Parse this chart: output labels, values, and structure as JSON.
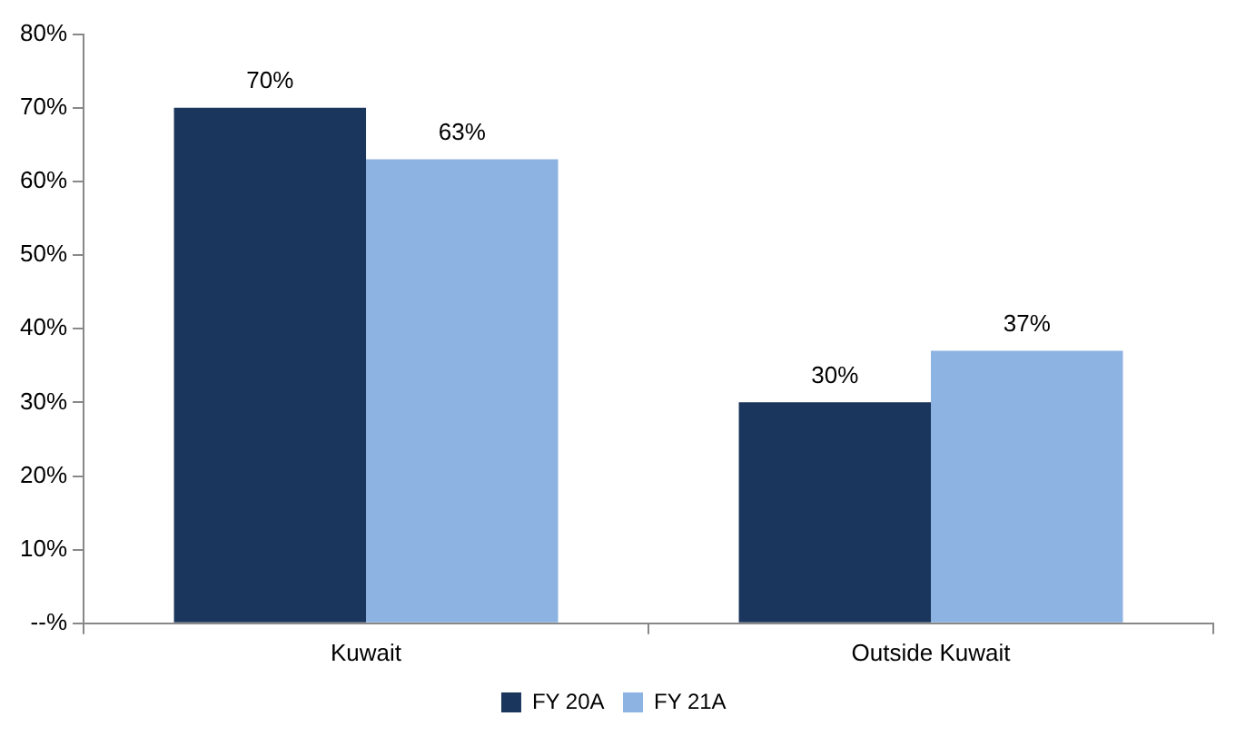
{
  "chart_data": {
    "type": "bar",
    "categories": [
      "Kuwait",
      "Outside Kuwait"
    ],
    "series": [
      {
        "name": "FY 20A",
        "color": "#1b365d",
        "values": [
          70,
          30
        ],
        "value_labels": [
          "70%",
          "30%"
        ]
      },
      {
        "name": "FY 21A",
        "color": "#8db3e2",
        "values": [
          63,
          37
        ],
        "value_labels": [
          "63%",
          "37%"
        ]
      }
    ],
    "ylim": [
      0,
      80
    ],
    "yticks": [
      {
        "value": 0,
        "label": "--%"
      },
      {
        "value": 10,
        "label": "10%"
      },
      {
        "value": 20,
        "label": "20%"
      },
      {
        "value": 30,
        "label": "30%"
      },
      {
        "value": 40,
        "label": "40%"
      },
      {
        "value": 50,
        "label": "50%"
      },
      {
        "value": 60,
        "label": "60%"
      },
      {
        "value": 70,
        "label": "70%"
      },
      {
        "value": 80,
        "label": "80%"
      }
    ],
    "grid": false,
    "legend": "bottom"
  }
}
